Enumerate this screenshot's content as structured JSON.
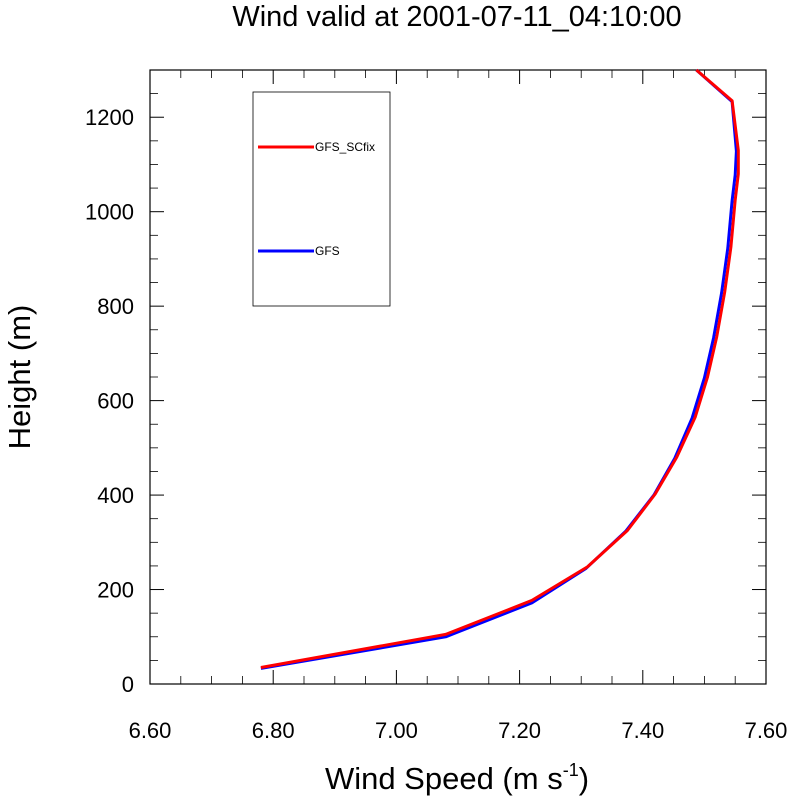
{
  "chart_data": {
    "type": "line",
    "title": "Wind valid at 2001-07-11_04:10:00",
    "xlabel": "Wind Speed (m s",
    "xlabel_sup": "-1",
    "xlabel_close": ")",
    "ylabel": "Height (m)",
    "xlim": [
      6.6,
      7.6
    ],
    "ylim": [
      0,
      1300
    ],
    "xticks": [
      6.6,
      6.8,
      7.0,
      7.2,
      7.4,
      7.6
    ],
    "xtick_labels": [
      "6.60",
      "6.80",
      "7.00",
      "7.20",
      "7.40",
      "7.60"
    ],
    "yticks": [
      0,
      200,
      400,
      600,
      800,
      1000,
      1200
    ],
    "ytick_labels": [
      "0",
      "200",
      "400",
      "600",
      "800",
      "1000",
      "1200"
    ],
    "legend_position": "top-left",
    "series": [
      {
        "name": "GFS_SCfix",
        "color": "#ff0000",
        "x": [
          6.78,
          7.08,
          7.22,
          7.31,
          7.375,
          7.42,
          7.455,
          7.485,
          7.505,
          7.52,
          7.533,
          7.543,
          7.55,
          7.555,
          7.555,
          7.545,
          7.487
        ],
        "y": [
          35,
          105,
          177,
          248,
          325,
          402,
          480,
          565,
          650,
          735,
          830,
          925,
          1025,
          1080,
          1130,
          1235,
          1300
        ]
      },
      {
        "name": "GFS",
        "color": "#0000ff",
        "x": [
          6.78,
          7.08,
          7.22,
          7.308,
          7.372,
          7.418,
          7.452,
          7.48,
          7.5,
          7.515,
          7.528,
          7.538,
          7.545,
          7.55,
          7.552,
          7.545,
          7.487
        ],
        "y": [
          33,
          100,
          172,
          245,
          323,
          400,
          478,
          563,
          648,
          733,
          828,
          923,
          1023,
          1078,
          1128,
          1233,
          1300
        ]
      }
    ]
  }
}
